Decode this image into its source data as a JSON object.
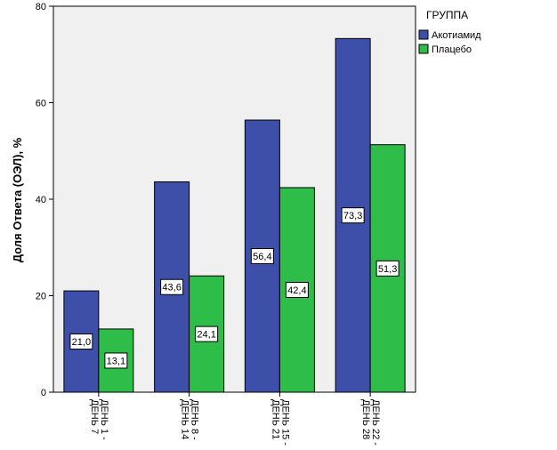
{
  "chart_data": {
    "type": "bar",
    "categories": [
      "ДЕНЬ 1 - ДЕНЬ 7",
      "ДЕНЬ 8 - ДЕНЬ 14",
      "ДЕНЬ 15 - ДЕНЬ 21",
      "ДЕНЬ 22 - ДЕНЬ 28"
    ],
    "series": [
      {
        "name": "Акотиамид",
        "values": [
          21.0,
          43.6,
          56.4,
          73.3
        ],
        "labels": [
          "21,0",
          "43,6",
          "56,4",
          "73,3"
        ],
        "color": "#3d4fa8"
      },
      {
        "name": "Плацебо",
        "values": [
          13.1,
          24.1,
          42.4,
          51.3
        ],
        "labels": [
          "13,1",
          "24,1",
          "42,4",
          "51,3"
        ],
        "color": "#2fbd4a"
      }
    ],
    "ylabel": "Доля Ответа (ОЭЛ), %",
    "xlabel": "",
    "ylim": [
      0,
      80
    ],
    "yticks": [
      0,
      20,
      40,
      60,
      80
    ],
    "legend_title": "ГРУППА",
    "legend_position": "top-right-outside",
    "plot_background": "#f0f0f0",
    "grid": false
  }
}
